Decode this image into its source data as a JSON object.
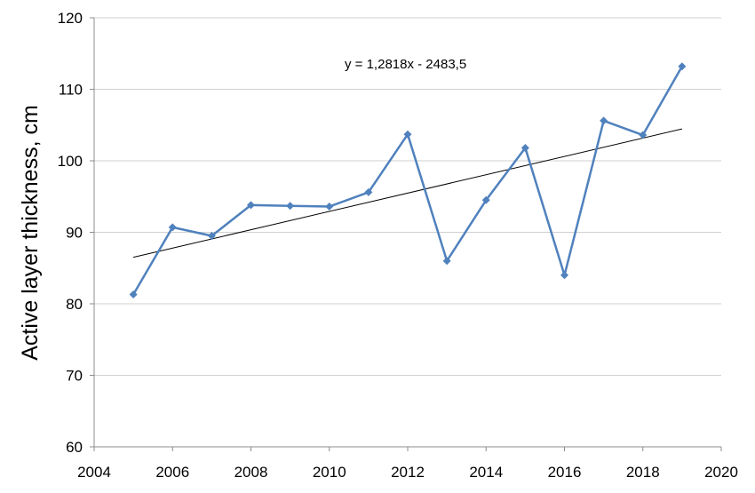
{
  "chart_data": {
    "type": "line",
    "title": "",
    "xlabel": "",
    "ylabel": "Active layer thickness, cm",
    "xlim": [
      2004,
      2020
    ],
    "ylim": [
      60,
      120
    ],
    "xticks": [
      2004,
      2006,
      2008,
      2010,
      2012,
      2014,
      2016,
      2018,
      2020
    ],
    "yticks": [
      60,
      70,
      80,
      90,
      100,
      110,
      120
    ],
    "xtick_labels": [
      "2004",
      "2006",
      "2008",
      "2010",
      "2012",
      "2014",
      "2016",
      "2018",
      "2020"
    ],
    "ytick_labels": [
      "60",
      "70",
      "80",
      "90",
      "100",
      "110",
      "120"
    ],
    "grid": "horizontal",
    "legend": "none",
    "series": [
      {
        "x": [
          2005,
          2006,
          2007,
          2008,
          2009,
          2010,
          2011,
          2012,
          2013,
          2014,
          2015,
          2016,
          2017,
          2018,
          2019
        ],
        "values": [
          81.3,
          90.7,
          89.5,
          93.8,
          93.7,
          93.6,
          95.6,
          103.7,
          86.0,
          94.5,
          101.8,
          84.0,
          105.6,
          103.6,
          113.2
        ],
        "color": "#4f81bd",
        "marker": "diamond"
      }
    ],
    "trendline": {
      "equation": "y = 1,2818x - 2483,5",
      "slope": 1.2818,
      "intercept": -2483.5,
      "x_range": [
        2005,
        2019
      ],
      "color": "#000000"
    },
    "colors": {
      "series": "#4f81bd",
      "grid": "#d0d0d0",
      "axis": "#8c8c8c"
    }
  }
}
